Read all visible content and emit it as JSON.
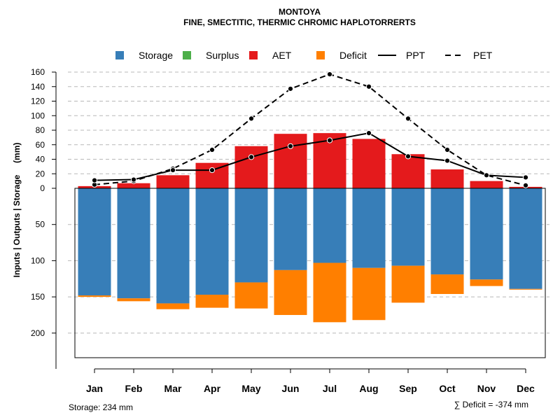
{
  "chart_data": {
    "type": "bar",
    "title": "MONTOYA",
    "subtitle": "FINE, SMECTITIC, THERMIC CHROMIC HAPLOTORRERTS",
    "ylabel": "Inputs | Outputs | Storage     (mm)",
    "categories": [
      "Jan",
      "Feb",
      "Mar",
      "Apr",
      "May",
      "Jun",
      "Jul",
      "Aug",
      "Sep",
      "Oct",
      "Nov",
      "Dec"
    ],
    "legend": [
      {
        "name": "Storage",
        "kind": "box",
        "color": "#377eb8"
      },
      {
        "name": "Surplus",
        "kind": "box",
        "color": "#4daf4a"
      },
      {
        "name": "AET",
        "kind": "box",
        "color": "#e41a1c"
      },
      {
        "name": "Deficit",
        "kind": "box",
        "color": "#ff7f00"
      },
      {
        "name": "PPT",
        "kind": "solid",
        "color": "#000000"
      },
      {
        "name": "PET",
        "kind": "dashed",
        "color": "#000000"
      }
    ],
    "upper_ticks": [
      0,
      20,
      40,
      60,
      80,
      100,
      120,
      140,
      160
    ],
    "lower_ticks": [
      50,
      100,
      150,
      200
    ],
    "series": {
      "AET": [
        3,
        7,
        18,
        35,
        58,
        75,
        76,
        68,
        47,
        26,
        10,
        2
      ],
      "PPT": [
        11,
        12,
        25,
        25,
        43,
        58,
        66,
        76,
        44,
        38,
        18,
        15
      ],
      "PET": [
        5,
        10,
        27,
        53,
        96,
        137,
        157,
        140,
        96,
        53,
        18,
        4
      ],
      "Storage": [
        148,
        152,
        159,
        147,
        130,
        113,
        103,
        110,
        107,
        119,
        126,
        139
      ],
      "Deficit": [
        2,
        4,
        8,
        18,
        36,
        62,
        82,
        72,
        51,
        27,
        9,
        1
      ]
    },
    "lower_range": [
      0,
      234
    ],
    "upper_range": [
      0,
      160
    ],
    "footer_left": "Storage: 234 mm",
    "footer_right": "∑ Deficit = -374 mm"
  }
}
